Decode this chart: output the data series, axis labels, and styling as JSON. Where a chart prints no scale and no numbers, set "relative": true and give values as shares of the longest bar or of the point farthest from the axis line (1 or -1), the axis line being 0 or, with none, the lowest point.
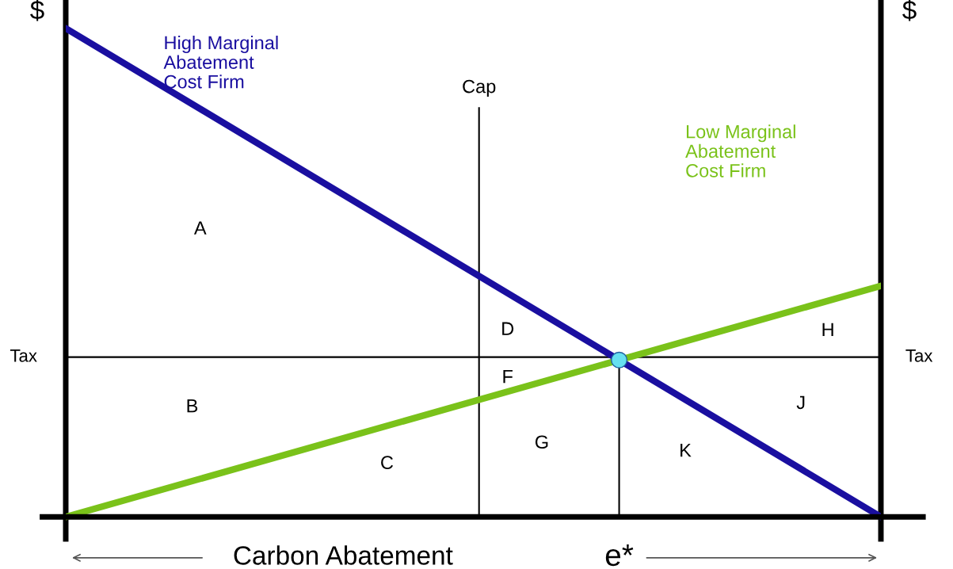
{
  "chart_data": {
    "type": "line",
    "relative": true,
    "xlabel": "Carbon Abatement",
    "ylabel": "$",
    "y2label": "$",
    "categories": [
      null,
      null
    ],
    "series": [
      {
        "name": "High Marginal Abatement Cost Firm",
        "color": "#1a0fa0",
        "values": [
          1,
          0
        ]
      },
      {
        "name": "Low Marginal Abatement Cost Firm",
        "color": "#7ac21a",
        "values": [
          0,
          0.473
        ]
      }
    ],
    "ref_lines": [
      {
        "axis": "y",
        "value": 0.327,
        "label": "Tax",
        "color": "#000000"
      },
      {
        "axis": "y",
        "value": 0,
        "color": "#000000"
      }
    ],
    "annotations": [
      "Cap",
      "e*",
      "A",
      "B",
      "C",
      "D",
      "F",
      "G",
      "K",
      "H",
      "J"
    ]
  }
}
